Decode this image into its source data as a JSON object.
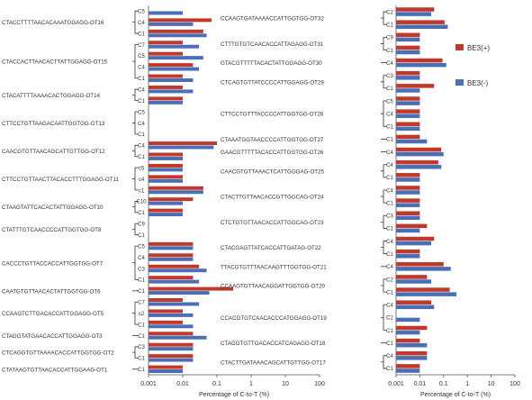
{
  "chart_data": [
    {
      "type": "bar",
      "orientation": "horizontal",
      "xscale": "log",
      "xlim": [
        0.001,
        100
      ],
      "xticks": [
        "0.001",
        "0.01",
        "0.1",
        "1",
        "10",
        "100"
      ],
      "xlabel": "Percentage of C-to-T (%)",
      "series_names": [
        "BE3(+)",
        "BE3(-)"
      ],
      "groups": [
        {
          "label": "CTACCTTTTAACACAAATGGAGG-OT16",
          "pos": [
            "C5",
            "C4",
            "C1"
          ],
          "plus": [
            null,
            0.07,
            0.04
          ],
          "minus": [
            0.01,
            0.02,
            0.05
          ]
        },
        {
          "label": "CTACCACTTAACACTTATTGGAGG-OT15",
          "pos": [
            "C7",
            "C5",
            "C4",
            "C1"
          ],
          "plus": [
            0.01,
            0.01,
            0.02,
            0.01
          ],
          "minus": [
            0.03,
            0.04,
            0.03,
            0.02
          ]
        },
        {
          "label": "CTACATTTTAAAACACTGGAGG-OT14",
          "pos": [
            "C4",
            "C1"
          ],
          "plus": [
            0.01,
            0.01
          ],
          "minus": [
            0.02,
            0.01
          ]
        },
        {
          "label": "CTTCCTGTTAAGACAATTGGTGG-OT13",
          "pos": [
            "C5",
            "C4",
            "C1"
          ],
          "plus": [
            null,
            null,
            null
          ],
          "minus": [
            null,
            null,
            null
          ]
        },
        {
          "label": "CAACGTGTTAACAGCATTGTTGG-OT12",
          "pos": [
            "C4",
            "C1"
          ],
          "plus": [
            0.1,
            0.01
          ],
          "minus": [
            0.08,
            0.01
          ]
        },
        {
          "label": "CTTCCTGTTAACTTACACCTTTGGAGG-OT11",
          "pos": [
            "c5",
            "c4",
            "c1"
          ],
          "plus": [
            0.01,
            0.01,
            0.04
          ],
          "minus": [
            0.01,
            0.01,
            0.04
          ]
        },
        {
          "label": "CTAAGTATTCACACTATTGGAGG-OT10",
          "pos": [
            "C10",
            "C1"
          ],
          "plus": [
            0.02,
            0.01
          ],
          "minus": [
            0.01,
            0.01
          ]
        },
        {
          "label": "CTATTTGTCAACCCCATTGGTGG-OT8",
          "pos": [
            "C9",
            "C1"
          ],
          "plus": [
            null,
            null
          ],
          "minus": [
            null,
            null
          ]
        },
        {
          "label": "CACCCTGTTACCACCATTGGTGG-OT7",
          "pos": [
            "C5",
            "C4",
            "C3",
            "C1"
          ],
          "plus": [
            0.02,
            0.02,
            0.03,
            0.02
          ],
          "minus": [
            0.02,
            0.02,
            0.05,
            0.03
          ]
        },
        {
          "label": "CAATGTGTTAACACTATTGGTGG-OT6",
          "pos": [
            "C1"
          ],
          "plus": [
            0.3
          ],
          "minus": [
            0.06
          ]
        },
        {
          "label": "CCAAGTCTTGACACCATTGGAGG-OT5",
          "pos": [
            "C7",
            "c2",
            "C1"
          ],
          "plus": [
            0.01,
            0.01,
            0.01
          ],
          "minus": [
            0.03,
            0.02,
            0.02
          ]
        },
        {
          "label": "CTAGGTATGAACACCATTGGAGG-OT3",
          "pos": [
            "C1"
          ],
          "plus": [
            0.02
          ],
          "minus": [
            0.05
          ]
        },
        {
          "label": "CTCAGGTGTTAAAACACCATTGGTGG-OT2",
          "pos": [
            "C3",
            "C1"
          ],
          "plus": [
            0.02,
            0.02
          ],
          "minus": [
            0.02,
            0.02
          ]
        },
        {
          "label": "CTATAAGTGTTAACACCATTGGAAG-OT1",
          "pos": [
            "C1"
          ],
          "plus": [
            0.01
          ],
          "minus": [
            0.01
          ]
        }
      ]
    },
    {
      "type": "bar",
      "orientation": "horizontal",
      "xscale": "log",
      "xlim": [
        0.001,
        100
      ],
      "xticks": [
        "0.001",
        "0.01",
        "0.1",
        "1",
        "10",
        "100"
      ],
      "xlabel": "Percentage of C-to-T (%)",
      "series_names": [
        "BE3(+)",
        "BE3(-)"
      ],
      "groups": [
        {
          "label": "CCAAGTGATAAAACCATTGGTGG-OT32",
          "pos": [
            "C2",
            "C1"
          ],
          "plus": [
            0.04,
            0.11
          ],
          "minus": [
            0.03,
            0.15
          ]
        },
        {
          "label": "CTTTGTGTCAACACCATTAGAGG-OT31",
          "pos": [
            "C9",
            "C1"
          ],
          "plus": [
            0.01,
            0.01
          ],
          "minus": [
            0.01,
            0.01
          ]
        },
        {
          "label": "GTACGTTTTTACACTATTGGAGG-OT30",
          "pos": [
            "C4"
          ],
          "plus": [
            0.09
          ],
          "minus": [
            0.13
          ]
        },
        {
          "label": "CTCAGTGTTATCCCCATTGGAGG-OT29",
          "pos": [
            "C3",
            "C1"
          ],
          "plus": [
            0.01,
            0.04
          ],
          "minus": [
            0.01,
            0.01
          ]
        },
        {
          "label": "CTTCCTGTTTACCCCATTGGTGG-OT28",
          "pos": [
            "C5",
            "C4",
            "C1"
          ],
          "plus": [
            0.01,
            0.01,
            0.01
          ],
          "minus": [
            0.01,
            0.01,
            0.01
          ]
        },
        {
          "label": "CTAAATGGTAACCCCATTGGTGG-OT27",
          "pos": [
            "C1"
          ],
          "plus": [
            0.01
          ],
          "minus": [
            0.02
          ]
        },
        {
          "label": "GAACGTTTTTACACCATTGGTGG-OT26",
          "pos": [
            "C4"
          ],
          "plus": [
            0.08
          ],
          "minus": [
            0.1
          ]
        },
        {
          "label": "CAACGTGTTAAACTCATTGGGAG-OT25",
          "pos": [
            "C4",
            "C1"
          ],
          "plus": [
            0.06,
            0.01
          ],
          "minus": [
            0.08,
            0.01
          ]
        },
        {
          "label": "CTACTTGTTAACACCGTTGGCAG-OT24",
          "pos": [
            "C4",
            "C1"
          ],
          "plus": [
            0.01,
            0.01
          ],
          "minus": [
            0.01,
            0.01
          ]
        },
        {
          "label": "CTCTGTGTTAACACCATTGGCAG-OT23",
          "pos": [
            "C3",
            "C1"
          ],
          "plus": [
            0.01,
            0.02
          ],
          "minus": [
            0.01,
            0.01
          ]
        },
        {
          "label": "CTACGAGTTATCACCATTGATAG-OT22",
          "pos": [
            "C4",
            "C1"
          ],
          "plus": [
            0.04,
            0.01
          ],
          "minus": [
            0.03,
            0.01
          ]
        },
        {
          "label": "TTACGTGTTTAACAAGTTTGGTGG-OT21",
          "pos": [
            "C4"
          ],
          "plus": [
            0.1
          ],
          "minus": [
            0.2
          ]
        },
        {
          "label": "CCAAGTGTTAACAGGATTGGTGG-OT20",
          "pos": [
            "C2",
            "C1"
          ],
          "plus": [
            0.02,
            0.18
          ],
          "minus": [
            0.03,
            0.35
          ]
        },
        {
          "label": "CCACGTGTCAACACCCATGGAGG-OT19",
          "pos": [
            "C4",
            "C2",
            "C1"
          ],
          "plus": [
            0.03,
            null,
            0.02
          ],
          "minus": [
            0.04,
            0.01,
            0.01
          ]
        },
        {
          "label": "CTAGGTGTTGACACCATCAGAGG-OT18",
          "pos": [
            "C1"
          ],
          "plus": [
            0.01
          ],
          "minus": [
            0.02
          ]
        },
        {
          "label": "CTACTTGATAAACAGCATTGTTGG-OT17",
          "pos": [
            "C4",
            "C1"
          ],
          "plus": [
            0.02,
            0.01
          ],
          "minus": [
            0.02,
            0.01
          ]
        }
      ]
    }
  ],
  "legend": [
    {
      "label": "BE3(+)",
      "color": "#c0392b"
    },
    {
      "label": "BE3(-)",
      "color": "#4a6fb5"
    }
  ],
  "colors": {
    "plus": "#c0392b",
    "minus": "#4a6fb5",
    "axis": "#555555",
    "grid": "#cccccc"
  }
}
